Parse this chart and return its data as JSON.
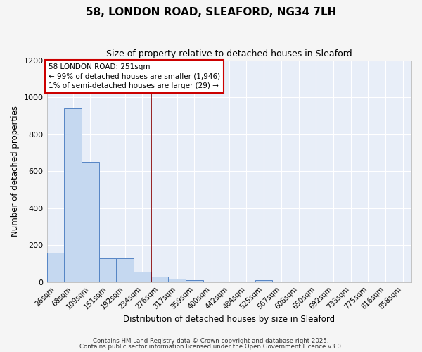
{
  "title": "58, LONDON ROAD, SLEAFORD, NG34 7LH",
  "subtitle": "Size of property relative to detached houses in Sleaford",
  "xlabel": "Distribution of detached houses by size in Sleaford",
  "ylabel": "Number of detached properties",
  "bar_labels": [
    "26sqm",
    "68sqm",
    "109sqm",
    "151sqm",
    "192sqm",
    "234sqm",
    "276sqm",
    "317sqm",
    "359sqm",
    "400sqm",
    "442sqm",
    "484sqm",
    "525sqm",
    "567sqm",
    "608sqm",
    "650sqm",
    "692sqm",
    "733sqm",
    "775sqm",
    "816sqm",
    "858sqm"
  ],
  "bar_values": [
    160,
    940,
    650,
    130,
    130,
    58,
    30,
    18,
    10,
    0,
    0,
    0,
    12,
    0,
    0,
    0,
    0,
    0,
    0,
    0,
    0
  ],
  "bar_color": "#c5d8f0",
  "bar_edge_color": "#5585c5",
  "fig_bg_color": "#f5f5f5",
  "plot_bg_color": "#e8eef8",
  "grid_color": "#ffffff",
  "vline_x": 5.5,
  "vline_color": "#880000",
  "ylim": [
    0,
    1200
  ],
  "yticks": [
    0,
    200,
    400,
    600,
    800,
    1000,
    1200
  ],
  "annotation_text": "58 LONDON ROAD: 251sqm\n← 99% of detached houses are smaller (1,946)\n1% of semi-detached houses are larger (29) →",
  "annotation_box_facecolor": "#ffffff",
  "annotation_box_edgecolor": "#cc0000",
  "footnote1": "Contains HM Land Registry data © Crown copyright and database right 2025.",
  "footnote2": "Contains public sector information licensed under the Open Government Licence v3.0."
}
